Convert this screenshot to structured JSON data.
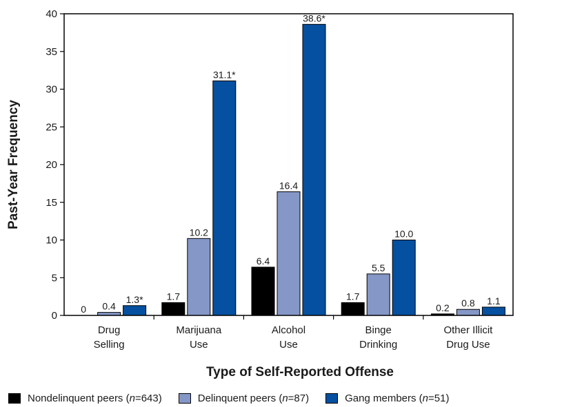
{
  "chart_data": {
    "type": "bar",
    "title": "",
    "xlabel": "Type of Self-Reported Offense",
    "ylabel": "Past-Year Frequency",
    "ylim": [
      0,
      40
    ],
    "yticks": [
      0,
      5,
      10,
      15,
      20,
      25,
      30,
      35,
      40
    ],
    "grid": false,
    "legend_position": "bottom",
    "categories": [
      [
        "Drug",
        "Selling"
      ],
      [
        "Marijuana",
        "Use"
      ],
      [
        "Alcohol",
        "Use"
      ],
      [
        "Binge",
        "Drinking"
      ],
      [
        "Other Illicit",
        "Drug Use"
      ]
    ],
    "series": [
      {
        "name": "Nondelinquent peers (n=643)",
        "legend_pre": "Nondelinquent peers (",
        "legend_n": "n",
        "legend_post": "=643)",
        "color": "#000000",
        "values": [
          0,
          1.7,
          6.4,
          1.7,
          0.2
        ],
        "labels": [
          "0",
          "1.7",
          "6.4",
          "1.7",
          "0.2"
        ]
      },
      {
        "name": "Delinquent peers (n=87)",
        "legend_pre": "Delinquent peers (",
        "legend_n": "n",
        "legend_post": "=87)",
        "color": "#8497c7",
        "values": [
          0.4,
          10.2,
          16.4,
          5.5,
          0.8
        ],
        "labels": [
          "0.4",
          "10.2",
          "16.4",
          "5.5",
          "0.8"
        ]
      },
      {
        "name": "Gang members (n=51)",
        "legend_pre": "Gang members (",
        "legend_n": "n",
        "legend_post": "=51)",
        "color": "#0550a0",
        "values": [
          1.3,
          31.1,
          38.6,
          10.0,
          1.1
        ],
        "labels": [
          "1.3*",
          "31.1*",
          "38.6*",
          "10.0",
          "1.1"
        ]
      }
    ]
  }
}
